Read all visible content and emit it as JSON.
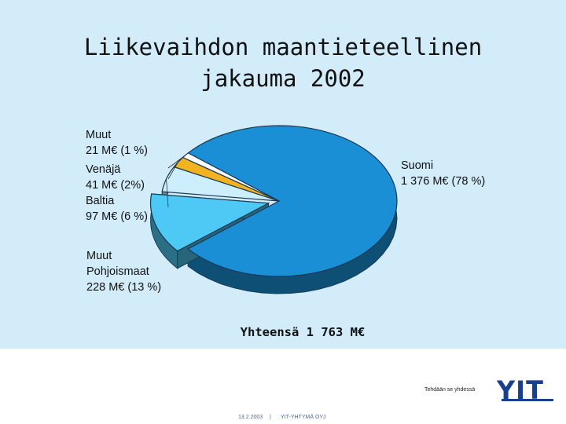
{
  "chart_data": {
    "type": "pie",
    "title": "Liikevaihdon maantieteellinen\njakauma 2002",
    "total_label": "Yhteensä 1 763 M€",
    "slices": [
      {
        "name": "Suomi",
        "value": 1376,
        "percent": 78,
        "label": "Suomi\n1 376 M€ (78 %)",
        "color": "#1a8fd6"
      },
      {
        "name": "Muut Pohjoismaat",
        "value": 228,
        "percent": 13,
        "label": "Muut\nPohjoismaat\n228 M€ (13 %)",
        "color": "#4ec9f5"
      },
      {
        "name": "Baltia",
        "value": 97,
        "percent": 6,
        "label": "Baltia\n97 M€ (6 %)",
        "color": "#cdeefc"
      },
      {
        "name": "Venäjä",
        "value": 41,
        "percent": 2,
        "label": "Venäjä\n41 M€ (2%)",
        "color": "#f3b320"
      },
      {
        "name": "Muut",
        "value": 21,
        "percent": 1,
        "label": "Muut\n21 M€ (1 %)",
        "color": "#ffffff"
      }
    ]
  },
  "footer": {
    "slogan": "Tehdään se yhdessä",
    "logo": "YIT",
    "date": "13.2.2003",
    "separator": "|",
    "company": "YIT-YHTYMÄ OYJ"
  },
  "colors": {
    "background": "#d3ecfa",
    "logo": "#1a3f8f"
  }
}
